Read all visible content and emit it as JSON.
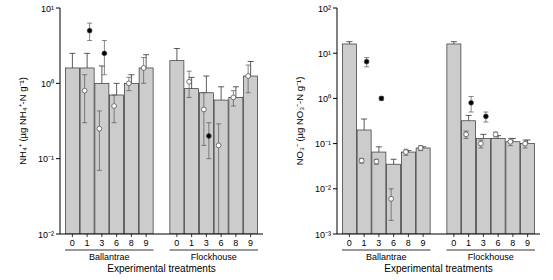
{
  "chart_data": [
    {
      "type": "bar",
      "log": "y",
      "color": "#cccccc",
      "y_label": "NH₄⁺ (µg NH₄⁺-N g⁻¹)",
      "x_label": "Experimental treatments",
      "groups": [
        "Ballantrae",
        "Flockhouse"
      ],
      "categories": [
        "0",
        "1",
        "3",
        "6",
        "8",
        "9",
        "0",
        "1",
        "3",
        "6",
        "8",
        "9"
      ],
      "ylim": [
        0.01,
        10
      ],
      "yticks": [
        {
          "value": 0.01,
          "label": "10⁻²"
        },
        {
          "value": 0.1,
          "label": "10⁻¹"
        },
        {
          "value": 1,
          "label": "10⁰"
        },
        {
          "value": 10,
          "label": "10¹"
        }
      ],
      "values": [
        1.6,
        1.6,
        1.0,
        0.7,
        1.0,
        1.6,
        2.0,
        0.85,
        0.75,
        0.6,
        0.65,
        1.25
      ],
      "errors": [
        0.9,
        0.9,
        0.7,
        0.3,
        0.3,
        0.8,
        0.9,
        0.35,
        0.5,
        0.3,
        0.25,
        0.7
      ],
      "filled_points": {
        "color": "#000000",
        "marker": "circle",
        "values": [
          null,
          5.0,
          2.5,
          null,
          null,
          null,
          null,
          null,
          0.2,
          null,
          null,
          null
        ],
        "errors": [
          null,
          1.3,
          1.2,
          null,
          null,
          null,
          null,
          null,
          0.1,
          null,
          null,
          null
        ]
      },
      "open_points": {
        "color": "#ffffff",
        "marker": "circle",
        "values": [
          null,
          0.8,
          0.25,
          0.5,
          1.0,
          1.6,
          null,
          1.05,
          0.45,
          0.15,
          0.65,
          1.25
        ],
        "errors": [
          null,
          0.5,
          0.18,
          0.2,
          0.2,
          0.6,
          null,
          0.4,
          0.3,
          0.14,
          0.15,
          0.5
        ]
      }
    },
    {
      "type": "bar",
      "log": "y",
      "color": "#cccccc",
      "y_label": "NO₃⁻ (µg NO₃⁻-N g⁻¹)",
      "x_label": "Experimental treatments",
      "groups": [
        "Ballantrae",
        "Flockhouse"
      ],
      "categories": [
        "0",
        "1",
        "3",
        "6",
        "8",
        "9",
        "0",
        "1",
        "3",
        "6",
        "8",
        "9"
      ],
      "ylim": [
        0.001,
        100
      ],
      "yticks": [
        {
          "value": 0.001,
          "label": "10⁻³"
        },
        {
          "value": 0.01,
          "label": "10⁻²"
        },
        {
          "value": 0.1,
          "label": "10⁻¹"
        },
        {
          "value": 1,
          "label": "10⁰"
        },
        {
          "value": 10,
          "label": "10¹"
        },
        {
          "value": 100,
          "label": "10²"
        }
      ],
      "values": [
        16,
        0.2,
        0.065,
        0.035,
        0.065,
        0.08,
        16,
        0.32,
        0.13,
        0.13,
        0.11,
        0.1
      ],
      "errors": [
        2,
        0.15,
        0.02,
        0.01,
        0.005,
        0.005,
        2,
        0.1,
        0.03,
        0.02,
        0.02,
        0.02
      ],
      "filled_points": {
        "color": "#000000",
        "marker": "circle",
        "values": [
          null,
          6.5,
          1.0,
          null,
          null,
          null,
          null,
          0.8,
          0.4,
          null,
          null,
          null
        ],
        "errors": [
          null,
          1.5,
          0.1,
          null,
          null,
          null,
          null,
          0.3,
          0.1,
          null,
          null,
          null
        ]
      },
      "open_points": {
        "color": "#ffffff",
        "marker": "circle",
        "values": [
          null,
          0.042,
          0.04,
          0.006,
          0.065,
          0.08,
          null,
          0.16,
          0.1,
          0.16,
          0.11,
          0.1
        ],
        "errors": [
          null,
          0.005,
          0.005,
          0.004,
          0.01,
          0.01,
          null,
          0.03,
          0.02,
          0.02,
          0.02,
          0.02
        ]
      }
    }
  ]
}
